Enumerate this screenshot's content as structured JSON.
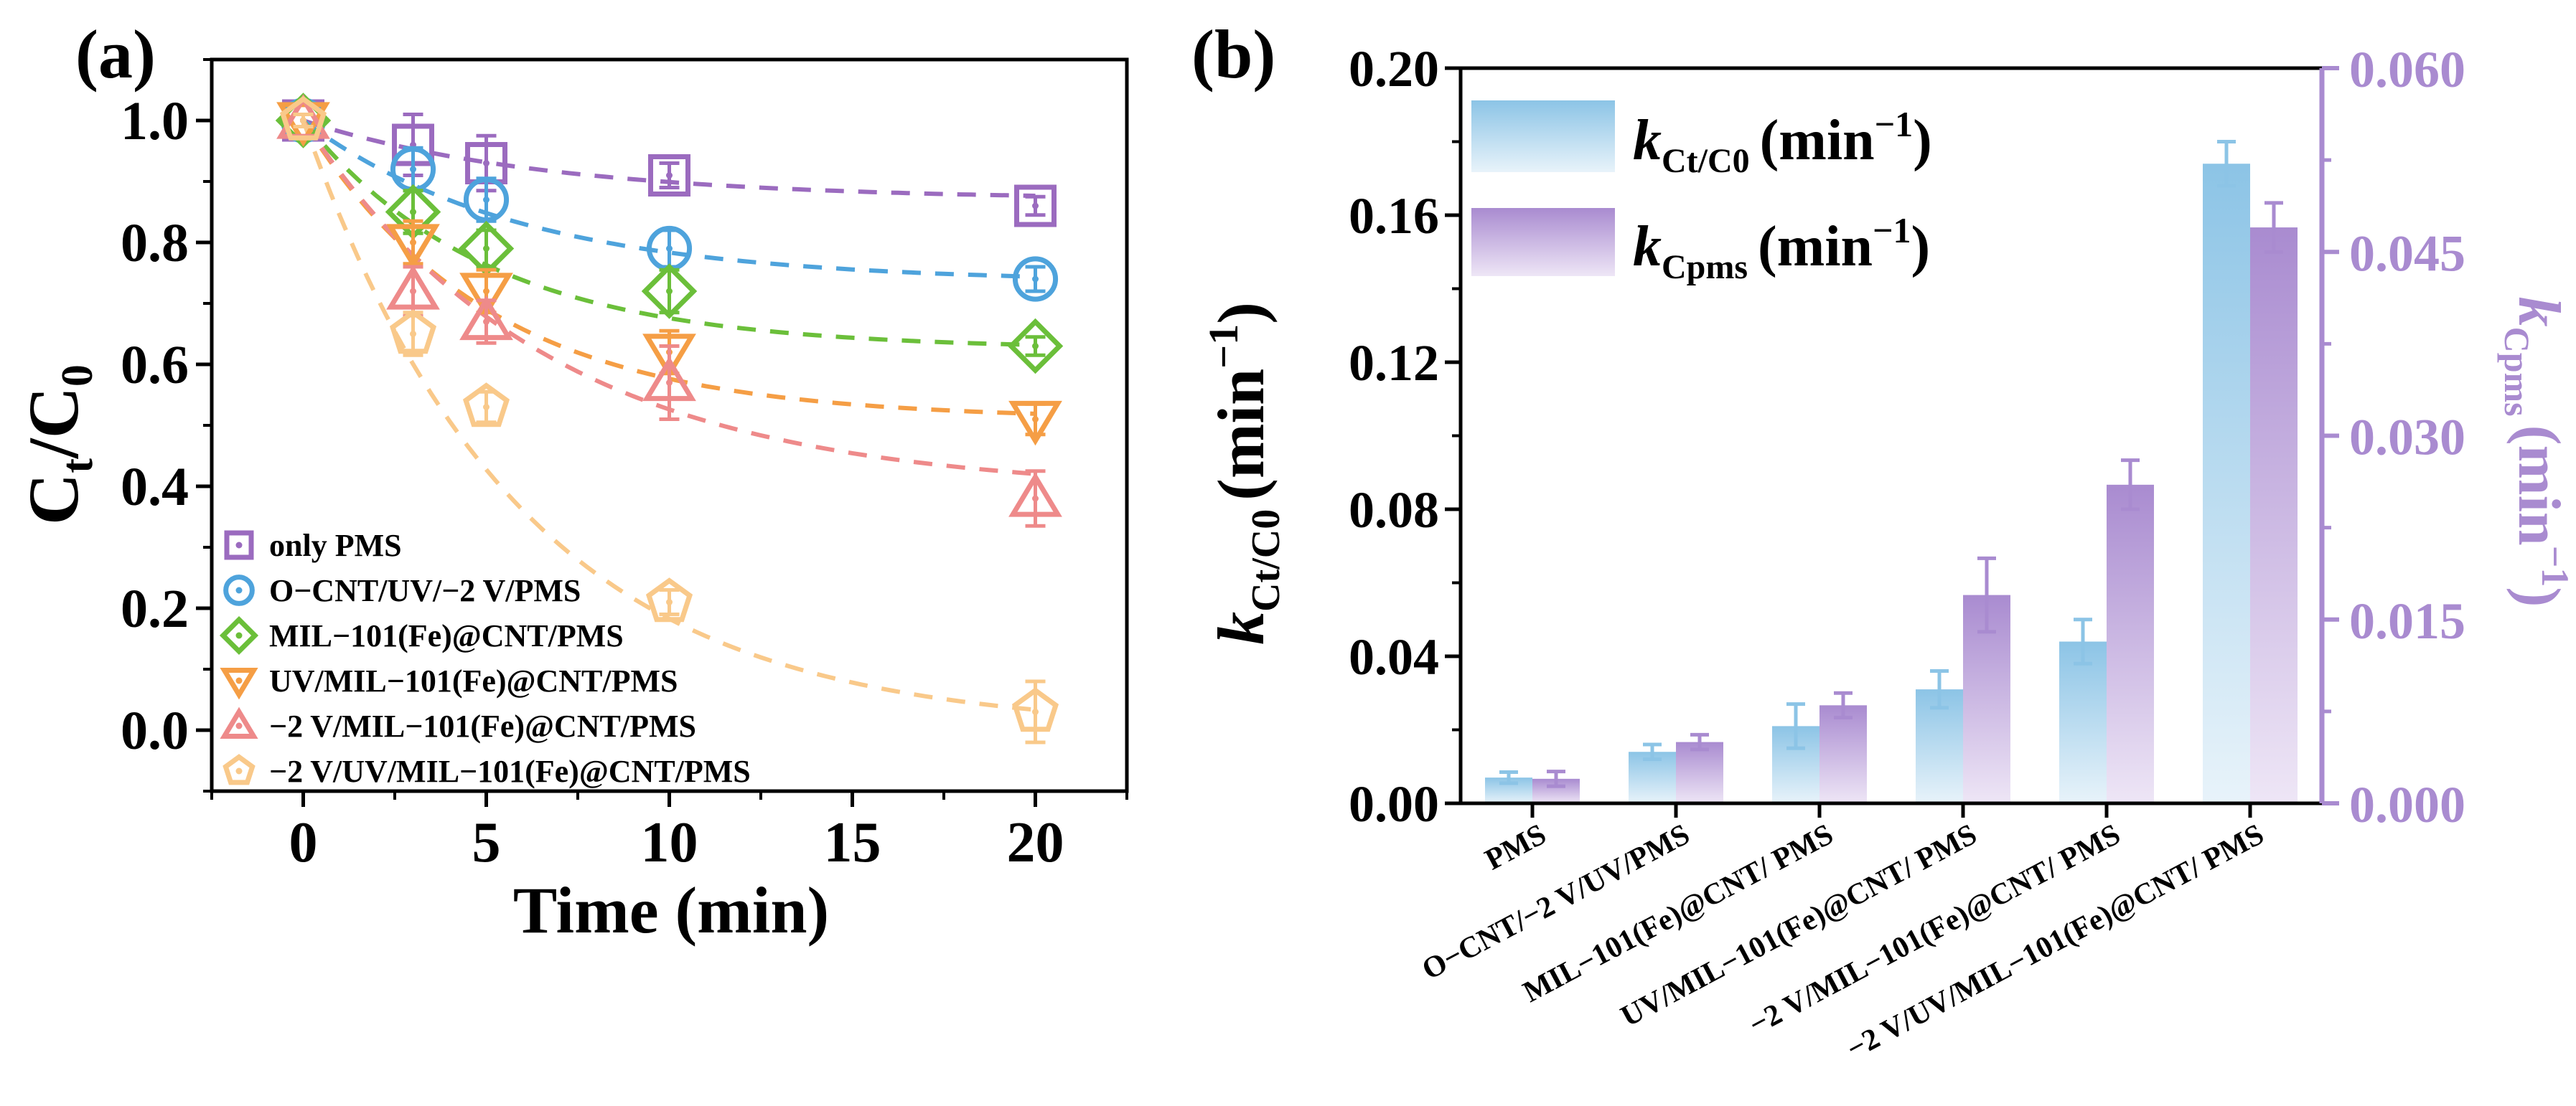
{
  "chart_data": [
    {
      "type": "line",
      "panel_label": "(a)",
      "xlabel": "Time (min)",
      "ylabel_main": "C",
      "ylabel_sub1": "t",
      "ylabel_slash": "/C",
      "ylabel_sub2": "0",
      "xlim": [
        -2.5,
        22.5
      ],
      "ylim": [
        -0.1,
        1.1
      ],
      "xticks": [
        0,
        5,
        10,
        15,
        20
      ],
      "yticks": [
        0.0,
        0.2,
        0.4,
        0.6,
        0.8,
        1.0
      ],
      "xtick_labels": [
        "0",
        "5",
        "10",
        "15",
        "20"
      ],
      "ytick_labels": [
        "0.0",
        "0.2",
        "0.4",
        "0.6",
        "0.8",
        "1.0"
      ],
      "legend_position": "bottom-left",
      "x": [
        0,
        3,
        5,
        10,
        20
      ],
      "series": [
        {
          "name": "only PMS",
          "marker": "square",
          "color": "#9B6BBF",
          "values": [
            1.0,
            0.96,
            0.93,
            0.91,
            0.86
          ],
          "errors": [
            0.01,
            0.05,
            0.045,
            0.02,
            0.015
          ],
          "fit": {
            "a": 0.87,
            "b": 0.13,
            "k": 0.15
          }
        },
        {
          "name": "O−CNT/UV/−2 V/PMS",
          "marker": "circle",
          "color": "#4EA3DC",
          "values": [
            1.0,
            0.92,
            0.87,
            0.79,
            0.74
          ],
          "errors": [
            0.01,
            0.035,
            0.035,
            0.03,
            0.02
          ],
          "fit": {
            "a": 0.735,
            "b": 0.265,
            "k": 0.17
          }
        },
        {
          "name": "MIL−101(Fe)@CNT/PMS",
          "marker": "diamond",
          "color": "#6BBF3A",
          "values": [
            1.0,
            0.85,
            0.79,
            0.72,
            0.63
          ],
          "errors": [
            0.01,
            0.035,
            0.03,
            0.035,
            0.015
          ],
          "fit": {
            "a": 0.625,
            "b": 0.375,
            "k": 0.2
          }
        },
        {
          "name": "UV/MIL−101(Fe)@CNT/PMS",
          "marker": "triangle-down",
          "color": "#F59E45",
          "values": [
            1.0,
            0.8,
            0.72,
            0.62,
            0.51
          ],
          "errors": [
            0.01,
            0.035,
            0.035,
            0.035,
            0.025
          ],
          "fit": {
            "a": 0.51,
            "b": 0.49,
            "k": 0.2
          }
        },
        {
          "name": "−2 V/MIL−101(Fe)@CNT/PMS",
          "marker": "triangle-up",
          "color": "#EE8A8A",
          "values": [
            1.0,
            0.72,
            0.67,
            0.57,
            0.38
          ],
          "errors": [
            0.01,
            0.04,
            0.035,
            0.06,
            0.045
          ],
          "fit": {
            "a": 0.39,
            "b": 0.61,
            "k": 0.15
          }
        },
        {
          "name": "−2 V/UV/MIL−101(Fe)@CNT/PMS",
          "marker": "pentagon",
          "color": "#F9C98A",
          "values": [
            1.0,
            0.65,
            0.53,
            0.21,
            0.03
          ],
          "errors": [
            0.01,
            0.035,
            0.025,
            0.02,
            0.05
          ],
          "fit": {
            "a": 0.0,
            "b": 1.0,
            "k": 0.17
          }
        }
      ]
    },
    {
      "type": "bar",
      "panel_label": "(b)",
      "categories": [
        "PMS",
        "O−CNT/−2 V/UV/PMS",
        "MIL−101(Fe)@CNT/ PMS",
        "UV/MIL−101(Fe)@CNT/ PMS",
        "−2 V/MIL−101(Fe)@CNT/ PMS",
        "−2 V/UV/MIL−101(Fe)@CNT/ PMS"
      ],
      "ylim": [
        0,
        0.2
      ],
      "yticks": [
        0.0,
        0.04,
        0.08,
        0.12,
        0.16,
        0.2
      ],
      "ytick_labels": [
        "0.00",
        "0.04",
        "0.08",
        "0.12",
        "0.16",
        "0.20"
      ],
      "y2lim": [
        0,
        0.06
      ],
      "y2ticks": [
        0.0,
        0.015,
        0.03,
        0.045,
        0.06
      ],
      "y2tick_labels": [
        "0.000",
        "0.015",
        "0.030",
        "0.045",
        "0.060"
      ],
      "ylabel": {
        "k": "k",
        "sub": "Ct/C0",
        "unit": "(min",
        "sup": "−1",
        "close": ")"
      },
      "y2label": {
        "k": "k",
        "sub": "Cpms",
        "unit": "(min",
        "sup": "−1",
        "close": ")"
      },
      "legend_position": "top-left",
      "series": [
        {
          "name": "k Ct/C0 (min−1)",
          "legend_sub": "Ct/C0",
          "axis": "left",
          "color": "#8CC4E6",
          "values": [
            0.007,
            0.014,
            0.021,
            0.031,
            0.044,
            0.174
          ],
          "errors": [
            0.0015,
            0.002,
            0.006,
            0.005,
            0.006,
            0.006
          ]
        },
        {
          "name": "k Cpms (min−1)",
          "legend_sub": "Cpms",
          "axis": "right",
          "color": "#A98BD0",
          "values": [
            0.002,
            0.005,
            0.008,
            0.017,
            0.026,
            0.047
          ],
          "errors": [
            0.0006,
            0.0006,
            0.001,
            0.003,
            0.002,
            0.002
          ]
        }
      ],
      "right_axis_color": "#A98BD0"
    }
  ]
}
